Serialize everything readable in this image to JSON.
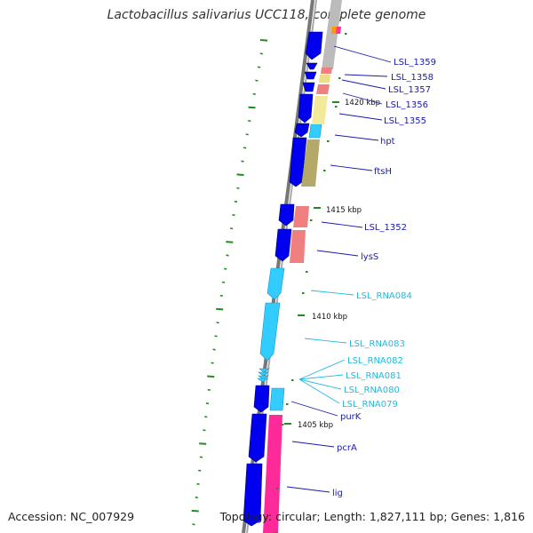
{
  "title": "Lactobacillus salivarius UCC118, complete genome",
  "footer": {
    "accession": "Accession: NC_007929",
    "topology": "Topology: circular; Length: 1,827,111 bp; Genes: 1,816"
  },
  "colors": {
    "forward_gene": "#0000ee",
    "rna_gene": "#33ccff",
    "backbone": "#888888",
    "tick": "#228b22",
    "label_blue": "#1a1aaa",
    "label_cyan": "#22bbdd"
  },
  "kbp_marks": [
    "1420 kbp",
    "1415 kbp",
    "1410 kbp",
    "1405 kbp"
  ],
  "gene_labels": [
    {
      "name": "LSL_1359",
      "kind": "cds"
    },
    {
      "name": "LSL_1358",
      "kind": "cds"
    },
    {
      "name": "LSL_1357",
      "kind": "cds"
    },
    {
      "name": "LSL_1356",
      "kind": "cds"
    },
    {
      "name": "LSL_1355",
      "kind": "cds"
    },
    {
      "name": "hpt",
      "kind": "cds"
    },
    {
      "name": "ftsH",
      "kind": "cds"
    },
    {
      "name": "LSL_1352",
      "kind": "cds"
    },
    {
      "name": "lysS",
      "kind": "cds"
    },
    {
      "name": "LSL_RNA084",
      "kind": "rna"
    },
    {
      "name": "LSL_RNA083",
      "kind": "rna"
    },
    {
      "name": "LSL_RNA082",
      "kind": "rna"
    },
    {
      "name": "LSL_RNA081",
      "kind": "rna"
    },
    {
      "name": "LSL_RNA080",
      "kind": "rna"
    },
    {
      "name": "LSL_RNA079",
      "kind": "rna"
    },
    {
      "name": "purK",
      "kind": "cds"
    },
    {
      "name": "pcrA",
      "kind": "cds"
    },
    {
      "name": "lig",
      "kind": "cds"
    }
  ]
}
